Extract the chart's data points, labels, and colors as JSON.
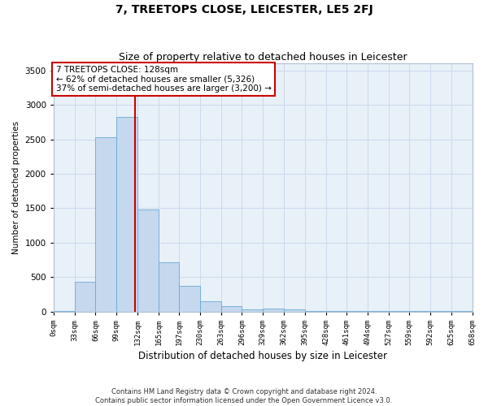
{
  "title": "7, TREETOPS CLOSE, LEICESTER, LE5 2FJ",
  "subtitle": "Size of property relative to detached houses in Leicester",
  "xlabel": "Distribution of detached houses by size in Leicester",
  "ylabel": "Number of detached properties",
  "bar_color": "#c5d8ed",
  "bar_edge_color": "#6aaad4",
  "grid_color": "#ccdaeb",
  "background_color": "#e8f0f8",
  "annotation_box_color": "#cc0000",
  "vline_color": "#cc0000",
  "vline_x": 128,
  "bin_edges": [
    0,
    33,
    66,
    99,
    132,
    165,
    197,
    230,
    263,
    296,
    329,
    362,
    395,
    428,
    461,
    494,
    527,
    559,
    592,
    625,
    658
  ],
  "bar_heights": [
    5,
    430,
    2530,
    2820,
    1480,
    720,
    380,
    155,
    85,
    30,
    50,
    30,
    10,
    10,
    5,
    5,
    5,
    5,
    5,
    5
  ],
  "tick_labels": [
    "0sqm",
    "33sqm",
    "66sqm",
    "99sqm",
    "132sqm",
    "165sqm",
    "197sqm",
    "230sqm",
    "263sqm",
    "296sqm",
    "329sqm",
    "362sqm",
    "395sqm",
    "428sqm",
    "461sqm",
    "494sqm",
    "527sqm",
    "559sqm",
    "592sqm",
    "625sqm",
    "658sqm"
  ],
  "ylim": [
    0,
    3600
  ],
  "yticks": [
    0,
    500,
    1000,
    1500,
    2000,
    2500,
    3000,
    3500
  ],
  "annotation_title": "7 TREETOPS CLOSE: 128sqm",
  "annotation_line1": "← 62% of detached houses are smaller (5,326)",
  "annotation_line2": "37% of semi-detached houses are larger (3,200) →",
  "footer1": "Contains HM Land Registry data © Crown copyright and database right 2024.",
  "footer2": "Contains public sector information licensed under the Open Government Licence v3.0."
}
